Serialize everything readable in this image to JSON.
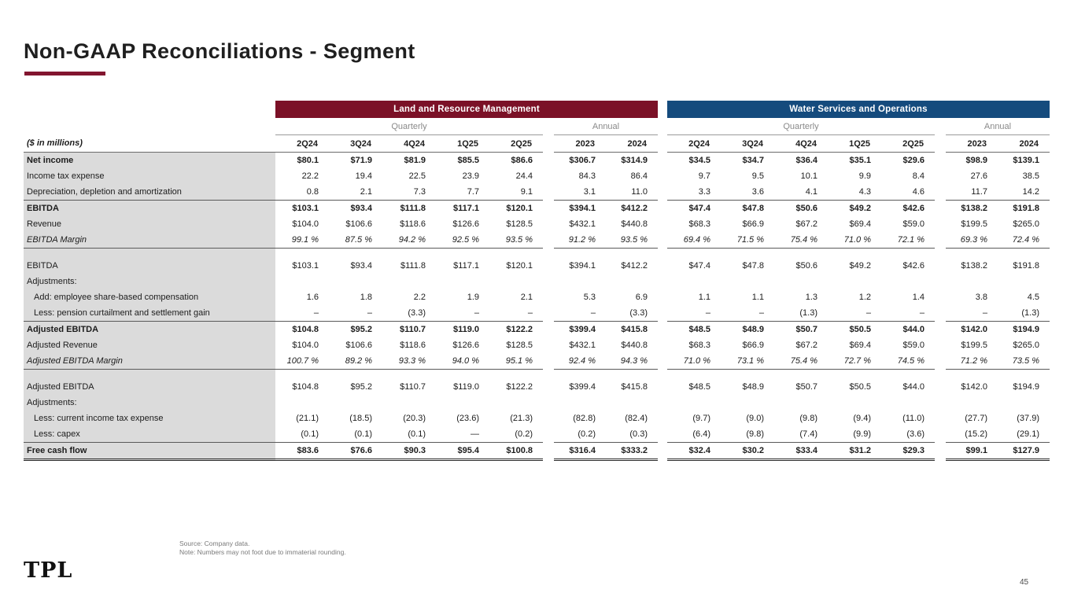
{
  "title": "Non-GAAP Reconciliations - Segment",
  "colors": {
    "accent": "#82152F",
    "land_header": "#7B1127",
    "water_header": "#154B7D",
    "label_column_bg": "#DBDBDB"
  },
  "table": {
    "units_label": "($ in millions)",
    "groups": [
      {
        "key": "land",
        "name": "Land and Resource Management",
        "color_key": "land_header"
      },
      {
        "key": "water",
        "name": "Water Services and Operations",
        "color_key": "water_header"
      }
    ],
    "sub_headers": {
      "quarterly": "Quarterly",
      "annual": "Annual"
    },
    "quarter_cols": [
      "2Q24",
      "3Q24",
      "4Q24",
      "1Q25",
      "2Q25"
    ],
    "annual_cols": [
      "2023",
      "2024"
    ],
    "rows": [
      {
        "label": "Net income",
        "style": "bold",
        "values": [
          "$80.1",
          "$71.9",
          "$81.9",
          "$85.5",
          "$86.6",
          "$306.7",
          "$314.9",
          "$34.5",
          "$34.7",
          "$36.4",
          "$35.1",
          "$29.6",
          "$98.9",
          "$139.1"
        ]
      },
      {
        "label": "Income tax expense",
        "style": "normal",
        "values": [
          "22.2",
          "19.4",
          "22.5",
          "23.9",
          "24.4",
          "84.3",
          "86.4",
          "9.7",
          "9.5",
          "10.1",
          "9.9",
          "8.4",
          "27.6",
          "38.5"
        ]
      },
      {
        "label": "Depreciation, depletion and amortization",
        "style": "normal",
        "underline": true,
        "values": [
          "0.8",
          "2.1",
          "7.3",
          "7.7",
          "9.1",
          "3.1",
          "11.0",
          "3.3",
          "3.6",
          "4.1",
          "4.3",
          "4.6",
          "11.7",
          "14.2"
        ]
      },
      {
        "label": "EBITDA",
        "style": "bold",
        "values": [
          "$103.1",
          "$93.4",
          "$111.8",
          "$117.1",
          "$120.1",
          "$394.1",
          "$412.2",
          "$47.4",
          "$47.8",
          "$50.6",
          "$49.2",
          "$42.6",
          "$138.2",
          "$191.8"
        ]
      },
      {
        "label": "Revenue",
        "style": "normal",
        "values": [
          "$104.0",
          "$106.6",
          "$118.6",
          "$126.6",
          "$128.5",
          "$432.1",
          "$440.8",
          "$68.3",
          "$66.9",
          "$67.2",
          "$69.4",
          "$59.0",
          "$199.5",
          "$265.0"
        ]
      },
      {
        "label": "EBITDA Margin",
        "style": "italic",
        "underline": true,
        "values": [
          "99.1 %",
          "87.5 %",
          "94.2 %",
          "92.5 %",
          "93.5 %",
          "91.2 %",
          "93.5 %",
          "69.4 %",
          "71.5 %",
          "75.4 %",
          "71.0 %",
          "72.1 %",
          "69.3 %",
          "72.4 %"
        ]
      },
      {
        "label": "",
        "style": "spacer"
      },
      {
        "label": "EBITDA",
        "style": "normal",
        "values": [
          "$103.1",
          "$93.4",
          "$111.8",
          "$117.1",
          "$120.1",
          "$394.1",
          "$412.2",
          "$47.4",
          "$47.8",
          "$50.6",
          "$49.2",
          "$42.6",
          "$138.2",
          "$191.8"
        ]
      },
      {
        "label": "Adjustments:",
        "style": "normal"
      },
      {
        "label": "Add: employee share-based compensation",
        "style": "indent",
        "values": [
          "1.6",
          "1.8",
          "2.2",
          "1.9",
          "2.1",
          "5.3",
          "6.9",
          "1.1",
          "1.1",
          "1.3",
          "1.2",
          "1.4",
          "3.8",
          "4.5"
        ]
      },
      {
        "label": "Less: pension curtailment and settlement gain",
        "style": "indent",
        "underline": true,
        "values": [
          "–",
          "–",
          "(3.3)",
          "–",
          "–",
          "–",
          "(3.3)",
          "–",
          "–",
          "(1.3)",
          "–",
          "–",
          "–",
          "(1.3)"
        ]
      },
      {
        "label": "Adjusted EBITDA",
        "style": "bold",
        "values": [
          "$104.8",
          "$95.2",
          "$110.7",
          "$119.0",
          "$122.2",
          "$399.4",
          "$415.8",
          "$48.5",
          "$48.9",
          "$50.7",
          "$50.5",
          "$44.0",
          "$142.0",
          "$194.9"
        ]
      },
      {
        "label": "Adjusted Revenue",
        "style": "normal",
        "values": [
          "$104.0",
          "$106.6",
          "$118.6",
          "$126.6",
          "$128.5",
          "$432.1",
          "$440.8",
          "$68.3",
          "$66.9",
          "$67.2",
          "$69.4",
          "$59.0",
          "$199.5",
          "$265.0"
        ]
      },
      {
        "label": "Adjusted EBITDA Margin",
        "style": "italic",
        "underline": true,
        "values": [
          "100.7 %",
          "89.2 %",
          "93.3 %",
          "94.0 %",
          "95.1 %",
          "92.4 %",
          "94.3 %",
          "71.0 %",
          "73.1 %",
          "75.4 %",
          "72.7 %",
          "74.5 %",
          "71.2 %",
          "73.5 %"
        ]
      },
      {
        "label": "",
        "style": "spacer"
      },
      {
        "label": "Adjusted EBITDA",
        "style": "normal",
        "values": [
          "$104.8",
          "$95.2",
          "$110.7",
          "$119.0",
          "$122.2",
          "$399.4",
          "$415.8",
          "$48.5",
          "$48.9",
          "$50.7",
          "$50.5",
          "$44.0",
          "$142.0",
          "$194.9"
        ]
      },
      {
        "label": "Adjustments:",
        "style": "normal"
      },
      {
        "label": "Less: current income tax expense",
        "style": "indent",
        "values": [
          "(21.1)",
          "(18.5)",
          "(20.3)",
          "(23.6)",
          "(21.3)",
          "(82.8)",
          "(82.4)",
          "(9.7)",
          "(9.0)",
          "(9.8)",
          "(9.4)",
          "(11.0)",
          "(27.7)",
          "(37.9)"
        ]
      },
      {
        "label": "Less: capex",
        "style": "indent",
        "underline": true,
        "values": [
          "(0.1)",
          "(0.1)",
          "(0.1)",
          "—",
          "(0.2)",
          "(0.2)",
          "(0.3)",
          "(6.4)",
          "(9.8)",
          "(7.4)",
          "(9.9)",
          "(3.6)",
          "(15.2)",
          "(29.1)"
        ]
      },
      {
        "label": "Free cash flow",
        "style": "bold",
        "grand": true,
        "values": [
          "$83.6",
          "$76.6",
          "$90.3",
          "$95.4",
          "$100.8",
          "$316.4",
          "$333.2",
          "$32.4",
          "$30.2",
          "$33.4",
          "$31.2",
          "$29.3",
          "$99.1",
          "$127.9"
        ]
      }
    ]
  },
  "footer": {
    "source_line1": "Source: Company data.",
    "source_line2": "Note: Numbers may not foot due to immaterial rounding.",
    "logo": "TPL",
    "page_number": "45"
  }
}
